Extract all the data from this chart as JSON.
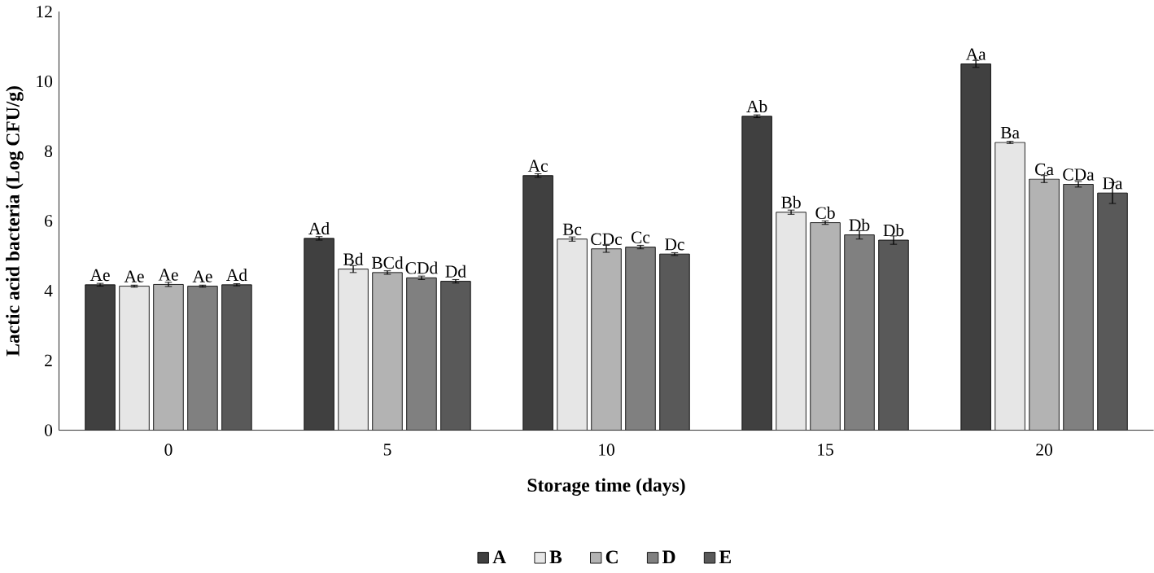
{
  "chart_data": {
    "type": "bar",
    "xlabel": "Storage time (days)",
    "ylabel": "Lactic acid bacteria (Log CFU/g)",
    "categories": [
      "0",
      "5",
      "10",
      "15",
      "20"
    ],
    "series": [
      {
        "name": "A",
        "color": "#404040",
        "values": [
          4.17,
          5.5,
          7.3,
          9.0,
          10.5
        ],
        "errors": [
          0.04,
          0.05,
          0.05,
          0.04,
          0.1
        ],
        "value_labels": [
          "Ae",
          "Ad",
          "Ac",
          "Ab",
          "Aa"
        ]
      },
      {
        "name": "B",
        "color": "#e6e6e6",
        "values": [
          4.13,
          4.62,
          5.48,
          6.25,
          8.25
        ],
        "errors": [
          0.03,
          0.1,
          0.06,
          0.06,
          0.03
        ],
        "value_labels": [
          "Ae",
          "Bd",
          "Bc",
          "Bb",
          "Ba"
        ]
      },
      {
        "name": "C",
        "color": "#b3b3b3",
        "values": [
          4.18,
          4.52,
          5.2,
          5.95,
          7.2
        ],
        "errors": [
          0.06,
          0.05,
          0.1,
          0.05,
          0.1
        ],
        "value_labels": [
          "Ae",
          "BCd",
          "CDc",
          "Cb",
          "Ca"
        ]
      },
      {
        "name": "D",
        "color": "#808080",
        "values": [
          4.13,
          4.37,
          5.25,
          5.6,
          7.05
        ],
        "errors": [
          0.03,
          0.05,
          0.05,
          0.12,
          0.08
        ],
        "value_labels": [
          "Ae",
          "CDd",
          "Cc",
          "Db",
          "CDa"
        ]
      },
      {
        "name": "E",
        "color": "#595959",
        "values": [
          4.17,
          4.27,
          5.05,
          5.45,
          6.8
        ],
        "errors": [
          0.03,
          0.05,
          0.04,
          0.12,
          0.3
        ],
        "value_labels": [
          "Ad",
          "Dd",
          "Dc",
          "Db",
          "Da"
        ]
      }
    ],
    "ylim": [
      0,
      12
    ],
    "yticks": [
      0,
      2,
      4,
      6,
      8,
      10,
      12
    ],
    "grid": false,
    "legend": "bottom"
  }
}
